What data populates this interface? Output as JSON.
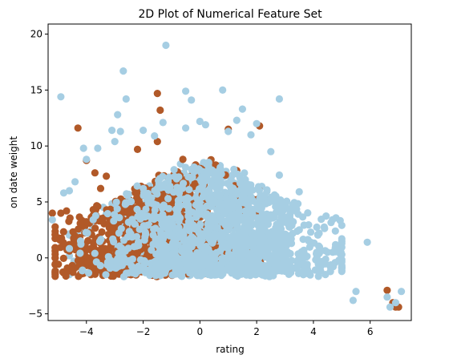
{
  "chart_data": {
    "type": "scatter",
    "title": "2D Plot of Numerical Feature Set",
    "xlabel": "rating",
    "ylabel": "on date weight",
    "xlim": [
      -5.35,
      7.45
    ],
    "ylim": [
      -5.6,
      20.9
    ],
    "xticks": [
      -4,
      -2,
      0,
      2,
      4,
      6
    ],
    "yticks": [
      -5,
      0,
      5,
      10,
      15,
      20
    ],
    "grid": false,
    "legend": "none",
    "colors": {
      "light": "#a6cee3",
      "dark": "#b15928"
    },
    "series": [
      {
        "color": "#a6cee3",
        "cloud": {
          "count": 2200,
          "seed": 7
        },
        "points": [
          [
            -1.2,
            19.0
          ],
          [
            -2.7,
            16.7
          ],
          [
            0.8,
            15.0
          ],
          [
            -4.9,
            14.4
          ],
          [
            -2.6,
            14.2
          ],
          [
            1.5,
            13.3
          ],
          [
            -0.5,
            14.9
          ],
          [
            2.8,
            14.2
          ],
          [
            -0.3,
            14.1
          ],
          [
            -2.9,
            12.8
          ],
          [
            1.3,
            12.3
          ],
          [
            -1.3,
            12.1
          ],
          [
            -2.0,
            11.4
          ],
          [
            0.0,
            12.2
          ],
          [
            2.0,
            12.0
          ],
          [
            -3.1,
            11.4
          ],
          [
            -0.5,
            11.6
          ],
          [
            1.8,
            11.0
          ],
          [
            -4.6,
            6.0
          ],
          [
            -4.8,
            5.8
          ],
          [
            -5.2,
            3.4
          ],
          [
            -4.1,
            9.8
          ],
          [
            -4.0,
            8.8
          ],
          [
            -3.6,
            9.8
          ],
          [
            -3.0,
            10.4
          ],
          [
            2.8,
            7.4
          ],
          [
            3.5,
            5.9
          ],
          [
            4.2,
            2.2
          ],
          [
            4.5,
            0.5
          ],
          [
            4.9,
            -0.2
          ],
          [
            4.6,
            -1.2
          ],
          [
            3.8,
            -1.4
          ],
          [
            5.9,
            1.4
          ],
          [
            5.5,
            -3.0
          ],
          [
            5.4,
            -3.8
          ],
          [
            6.6,
            -3.5
          ],
          [
            6.7,
            -4.4
          ],
          [
            6.9,
            -4.0
          ],
          [
            7.1,
            -3.0
          ],
          [
            -2.8,
            11.3
          ],
          [
            0.2,
            11.9
          ],
          [
            1.0,
            11.3
          ],
          [
            -1.6,
            10.9
          ],
          [
            2.5,
            9.5
          ],
          [
            -4.4,
            6.8
          ]
        ]
      },
      {
        "color": "#b15928",
        "cloud": {
          "count": 750,
          "seed": 13
        },
        "points": [
          [
            -1.5,
            14.7
          ],
          [
            -1.4,
            13.2
          ],
          [
            -4.3,
            11.6
          ],
          [
            -1.5,
            10.4
          ],
          [
            -2.2,
            9.7
          ],
          [
            -4.0,
            8.7
          ],
          [
            -3.7,
            7.6
          ],
          [
            -3.3,
            7.3
          ],
          [
            -3.5,
            6.2
          ],
          [
            -5.2,
            4.0
          ],
          [
            -4.9,
            4.0
          ],
          [
            -4.7,
            4.2
          ],
          [
            -5.1,
            0.0
          ],
          [
            2.1,
            11.8
          ],
          [
            1.0,
            11.5
          ],
          [
            1.3,
            7.8
          ],
          [
            0.2,
            8.0
          ],
          [
            2.0,
            5.2
          ],
          [
            1.5,
            4.3
          ],
          [
            6.6,
            -2.9
          ],
          [
            6.8,
            -4.0
          ],
          [
            6.9,
            -4.4
          ],
          [
            7.0,
            -4.4
          ],
          [
            -0.6,
            8.8
          ],
          [
            0.9,
            7.4
          ],
          [
            -3.6,
            4.6
          ],
          [
            -2.9,
            3.0
          ],
          [
            1.4,
            4.0
          ]
        ]
      }
    ]
  }
}
